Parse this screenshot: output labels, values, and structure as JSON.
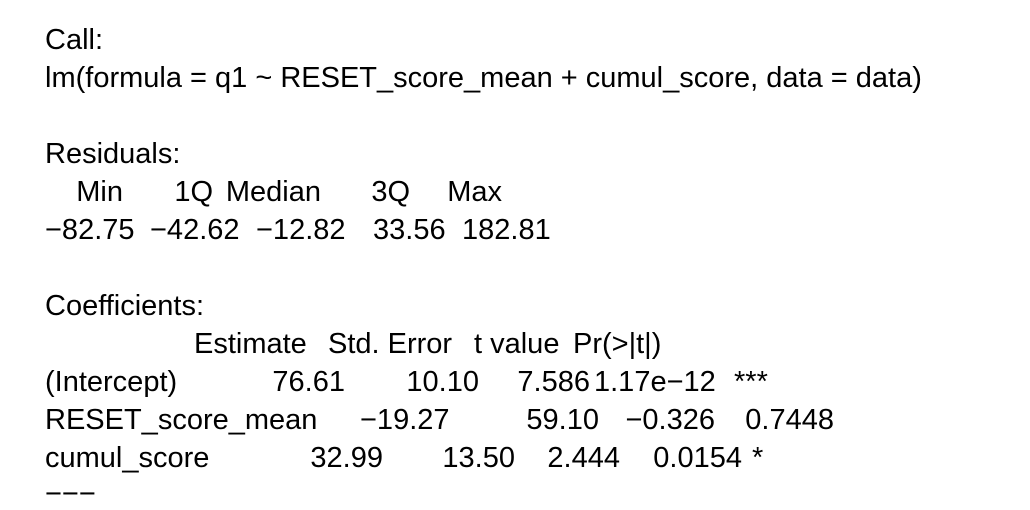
{
  "call": {
    "label": "Call:",
    "formula": "lm(formula = q1 ~ RESET_score_mean + cumul_score, data = data)"
  },
  "residuals": {
    "label": "Residuals:",
    "headers": [
      "Min",
      "1Q",
      "Median",
      "3Q",
      "Max"
    ],
    "values": [
      "−82.75",
      "−42.62",
      "−12.82",
      "33.56",
      "182.81"
    ]
  },
  "coefficients": {
    "label": "Coefficients:",
    "headers": [
      "Estimate",
      "Std. Error",
      "t value",
      "Pr(>|t|)"
    ],
    "rows": [
      {
        "name": "(Intercept)",
        "estimate": "76.61",
        "std_error": "10.10",
        "t_value": "7.586",
        "p_value": "1.17e−12",
        "signif": "***"
      },
      {
        "name": "RESET_score_mean",
        "estimate": "−19.27",
        "std_error": "59.10",
        "t_value": "−0.326",
        "p_value": "0.7448",
        "signif": ""
      },
      {
        "name": "cumul_score",
        "estimate": "32.99",
        "std_error": "13.50",
        "t_value": "2.444",
        "p_value": "0.0154",
        "signif": "*"
      }
    ],
    "separator": "−−−"
  }
}
